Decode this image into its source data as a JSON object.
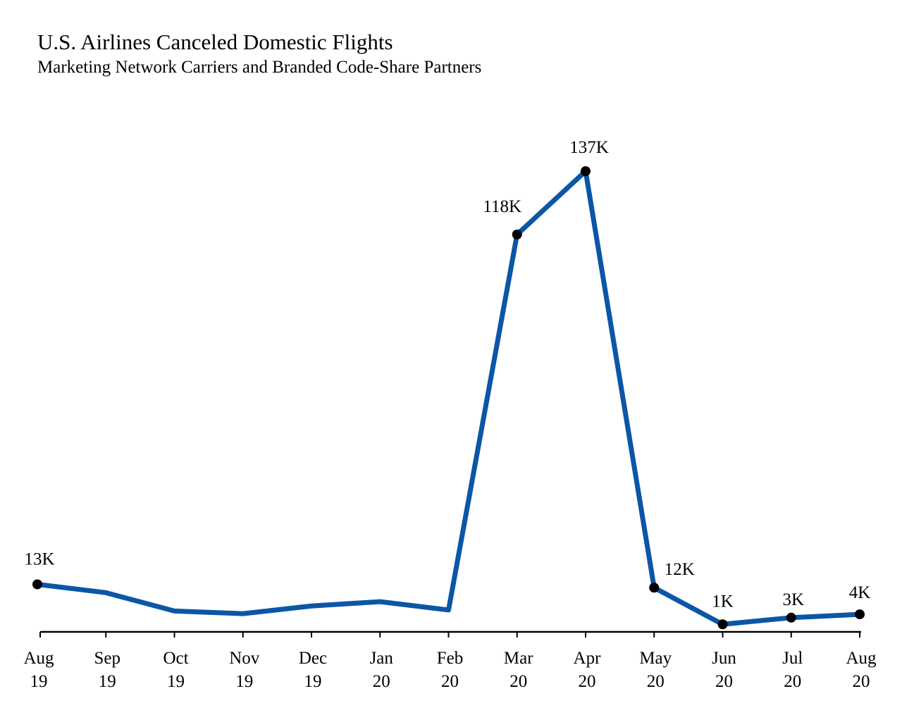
{
  "title": "U.S. Airlines Canceled Domestic Flights",
  "subtitle": "Marketing Network Carriers and Branded Code-Share Partners",
  "colors": {
    "line": "#0b56a5",
    "marker": "#000000",
    "axis": "#000000"
  },
  "chart_data": {
    "type": "line",
    "title": "U.S. Airlines Canceled Domestic Flights",
    "subtitle": "Marketing Network Carriers and Branded Code-Share Partners",
    "xlabel": "",
    "ylabel": "",
    "categories": [
      [
        "Aug",
        "19"
      ],
      [
        "Sep",
        "19"
      ],
      [
        "Oct",
        "19"
      ],
      [
        "Nov",
        "19"
      ],
      [
        "Dec",
        "19"
      ],
      [
        "Jan",
        "20"
      ],
      [
        "Feb",
        "20"
      ],
      [
        "Mar",
        "20"
      ],
      [
        "Apr",
        "20"
      ],
      [
        "May",
        "20"
      ],
      [
        "Jun",
        "20"
      ],
      [
        "Jul",
        "20"
      ],
      [
        "Aug",
        "20"
      ]
    ],
    "values": [
      13000,
      10500,
      5000,
      4200,
      6500,
      7800,
      5300,
      118000,
      137000,
      12000,
      1000,
      3000,
      4000
    ],
    "data_labels": [
      "13K",
      null,
      null,
      null,
      null,
      null,
      null,
      "118K",
      "137K",
      "12K",
      "1K",
      "3K",
      "4K"
    ],
    "ylim": [
      0,
      137000
    ],
    "grid": false,
    "legend": "none"
  }
}
